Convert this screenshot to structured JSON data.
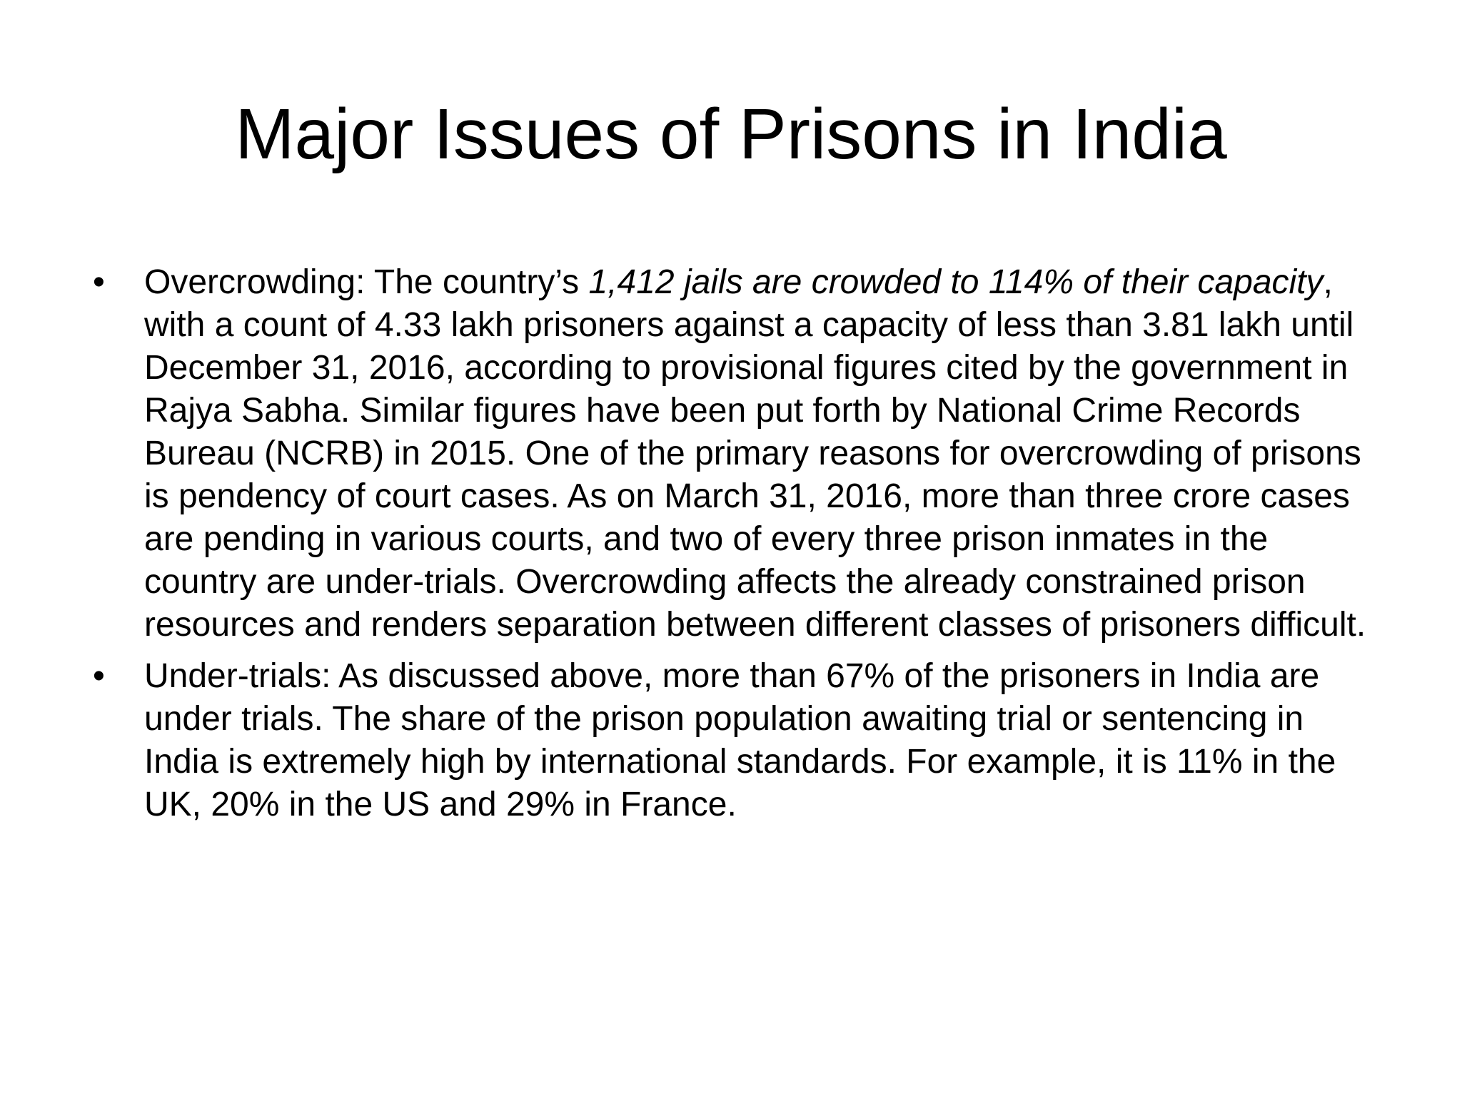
{
  "title": "Major Issues of Prisons in India",
  "bullets": [
    {
      "runs": [
        {
          "text": "Overcrowding: The country’s "
        },
        {
          "text": "1,412 jails are crowded to 114% of their capacity",
          "style": "italic"
        },
        {
          "text": ", with a count of 4.33 lakh prisoners against a capacity of less than 3.81 lakh until December 31, 2016, according to provisional figures cited by the government in Rajya Sabha. Similar figures have been put forth by National Crime Records Bureau (NCRB) in 2015. One of the primary reasons for overcrowding of prisons is pendency of court cases. As on March 31, 2016, more than three crore cases are pending in various courts, and two of every three prison inmates in the country are under-trials. Overcrowding affects the already constrained prison resources and renders separation between different classes of prisoners difficult."
        }
      ]
    },
    {
      "runs": [
        {
          "text": "Under-trials: As discussed above, more than 67% of the prisoners in India are under trials. The share of the prison population awaiting trial or sentencing in India is extremely high by international standards. For example, it is 11% in the UK, 20% in the US and 29% in France."
        }
      ]
    }
  ]
}
